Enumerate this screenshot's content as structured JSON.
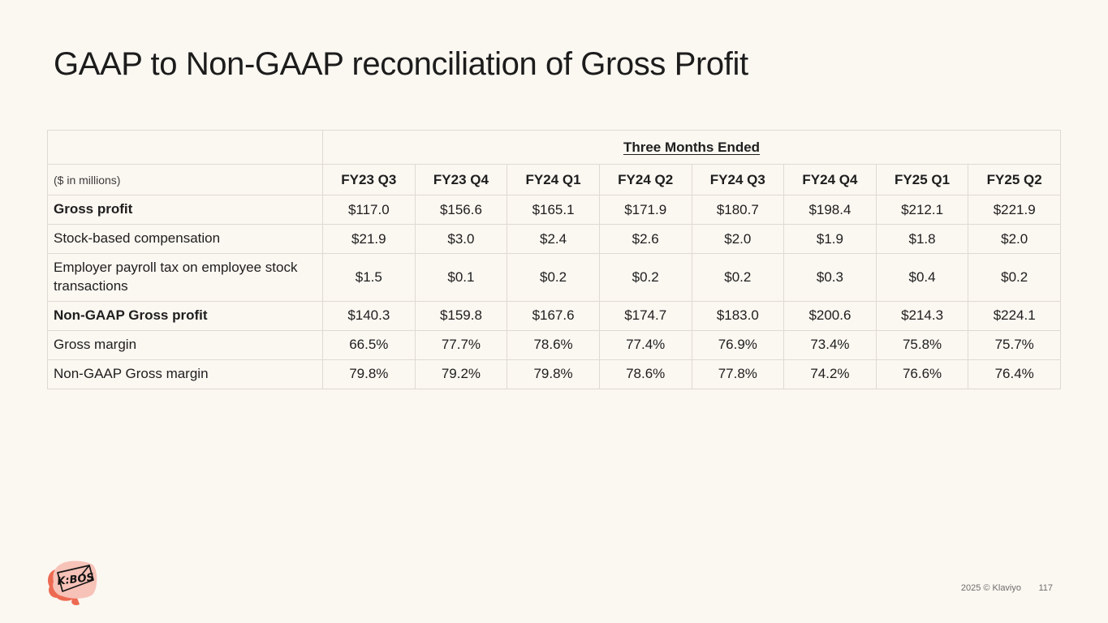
{
  "slide": {
    "title": "GAAP to Non-GAAP reconciliation of Gross Profit"
  },
  "table": {
    "span_header": "Three Months Ended",
    "unit_label": "($ in millions)",
    "columns": [
      "FY23 Q3",
      "FY23 Q4",
      "FY24 Q1",
      "FY24 Q2",
      "FY24 Q3",
      "FY24 Q4",
      "FY25 Q1",
      "FY25 Q2"
    ],
    "rows": [
      {
        "label": "Gross profit",
        "bold": true,
        "values": [
          "$117.0",
          "$156.6",
          "$165.1",
          "$171.9",
          "$180.7",
          "$198.4",
          "$212.1",
          "$221.9"
        ]
      },
      {
        "label": "Stock-based compensation",
        "bold": false,
        "values": [
          "$21.9",
          "$3.0",
          "$2.4",
          "$2.6",
          "$2.0",
          "$1.9",
          "$1.8",
          "$2.0"
        ]
      },
      {
        "label": "Employer payroll tax on employee stock transactions",
        "bold": false,
        "values": [
          "$1.5",
          "$0.1",
          "$0.2",
          "$0.2",
          "$0.2",
          "$0.3",
          "$0.4",
          "$0.2"
        ]
      },
      {
        "label": "Non-GAAP Gross profit",
        "bold": true,
        "values": [
          "$140.3",
          "$159.8",
          "$167.6",
          "$174.7",
          "$183.0",
          "$200.6",
          "$214.3",
          "$224.1"
        ]
      },
      {
        "label": "Gross margin",
        "bold": false,
        "values": [
          "66.5%",
          "77.7%",
          "78.6%",
          "77.4%",
          "76.9%",
          "73.4%",
          "75.8%",
          "75.7%"
        ]
      },
      {
        "label": "Non-GAAP Gross margin",
        "bold": false,
        "values": [
          "79.8%",
          "79.2%",
          "79.8%",
          "78.6%",
          "77.8%",
          "74.2%",
          "76.6%",
          "76.4%"
        ]
      }
    ]
  },
  "footer": {
    "copyright": "2025 © Klaviyo",
    "page_number": "117",
    "logo_text": "K:BOS"
  },
  "colors": {
    "background": "#FBF7F1",
    "text": "#1E1E1E",
    "muted_text": "#6E6E6E",
    "table_border": "#DFDAD3",
    "logo_pink": "#F7C2B8",
    "logo_red": "#ED6A52"
  }
}
